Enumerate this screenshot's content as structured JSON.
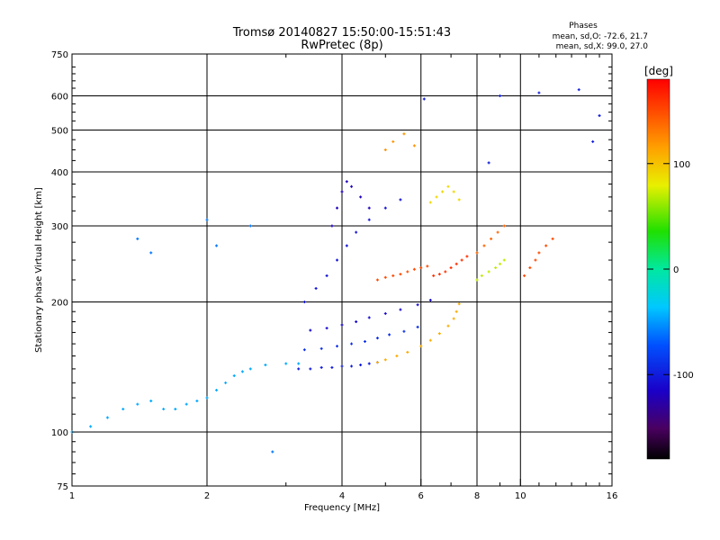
{
  "header": {
    "title_line1": "Tromsø 20140827 15:50:00-15:51:43",
    "title_line2": "RwPretec (8p)",
    "phases_heading": "Phases",
    "phases_o": "mean, sd,O: -72.6, 21.7",
    "phases_x": "mean, sd,X:  99.0, 27.0"
  },
  "colorbar": {
    "unit_label": "[deg]",
    "ticks": [
      {
        "value": 100,
        "label": "100"
      },
      {
        "value": 0,
        "label": "0"
      },
      {
        "value": -100,
        "label": "-100"
      }
    ],
    "range": [
      -180,
      180
    ]
  },
  "chart_data": {
    "type": "scatter",
    "xlabel": "Frequency [MHz]",
    "ylabel": "Stationary phase Virtual Height [km]",
    "x_scale": "log",
    "y_scale": "log",
    "xlim": [
      1,
      16
    ],
    "ylim": [
      75,
      750
    ],
    "grid": true,
    "x_ticks": [
      {
        "value": 1,
        "label": "1"
      },
      {
        "value": 2,
        "label": "2"
      },
      {
        "value": 4,
        "label": "4"
      },
      {
        "value": 6,
        "label": "6"
      },
      {
        "value": 8,
        "label": "8"
      },
      {
        "value": 10,
        "label": "10"
      },
      {
        "value": 16,
        "label": "16"
      }
    ],
    "y_ticks": [
      {
        "value": 75,
        "label": "75"
      },
      {
        "value": 100,
        "label": "100"
      },
      {
        "value": 200,
        "label": "200"
      },
      {
        "value": 300,
        "label": "300"
      },
      {
        "value": 400,
        "label": "400"
      },
      {
        "value": 500,
        "label": "500"
      },
      {
        "value": 600,
        "label": "600"
      },
      {
        "value": 750,
        "label": "750"
      }
    ],
    "grid_x": [
      2,
      4,
      6,
      8,
      10
    ],
    "grid_y": [
      100,
      200,
      300,
      400,
      500,
      600
    ],
    "color_scale": "rainbow (black to red) over phase -180 to 180 deg",
    "point_groups": [
      {
        "f": [
          1.0,
          1.1,
          1.2,
          1.3,
          1.4,
          1.5,
          1.6,
          1.7,
          1.8,
          1.9,
          2.0,
          2.1,
          2.2,
          2.3,
          2.4,
          2.5,
          2.7,
          3.0,
          3.2
        ],
        "h": [
          100,
          103,
          108,
          113,
          116,
          118,
          113,
          113,
          116,
          118,
          120,
          125,
          130,
          135,
          138,
          140,
          143,
          144,
          144
        ],
        "phase": -45
      },
      {
        "f": [
          3.2,
          3.4,
          3.6,
          3.8,
          4.0,
          4.2,
          4.4,
          4.6,
          4.8
        ],
        "h": [
          140,
          140,
          141,
          141,
          142,
          142,
          143,
          144,
          145
        ],
        "phase": -100
      },
      {
        "f": [
          4.8,
          5.0,
          5.3,
          5.6,
          6.0,
          6.3,
          6.6,
          6.9,
          7.1,
          7.2,
          7.3
        ],
        "h": [
          145,
          147,
          150,
          153,
          158,
          163,
          169,
          176,
          183,
          190,
          198
        ],
        "phase": 110
      },
      {
        "f": [
          3.3,
          3.6,
          3.9,
          4.2,
          4.5,
          4.8,
          5.1,
          5.5,
          5.9
        ],
        "h": [
          155,
          156,
          158,
          160,
          162,
          165,
          168,
          171,
          175
        ],
        "phase": -90
      },
      {
        "f": [
          3.4,
          3.7,
          4.0,
          4.3,
          4.6,
          5.0,
          5.4,
          5.9,
          6.3
        ],
        "h": [
          172,
          174,
          177,
          180,
          184,
          188,
          192,
          197,
          202
        ],
        "phase": -110
      },
      {
        "f": [
          3.3,
          3.5,
          3.7,
          3.9,
          4.1,
          4.3,
          4.6,
          5.0,
          5.4
        ],
        "h": [
          200,
          215,
          230,
          250,
          270,
          290,
          310,
          330,
          345
        ],
        "phase": -105
      },
      {
        "f": [
          3.8,
          3.9,
          4.0,
          4.1,
          4.2,
          4.4,
          4.6
        ],
        "h": [
          300,
          330,
          360,
          380,
          370,
          350,
          330
        ],
        "phase": -120
      },
      {
        "f": [
          4.8,
          5.0,
          5.2,
          5.4,
          5.6,
          5.8,
          6.0,
          6.2
        ],
        "h": [
          225,
          228,
          230,
          232,
          235,
          238,
          240,
          242
        ],
        "phase": 150
      },
      {
        "f": [
          6.4,
          6.6,
          6.8,
          7.0,
          7.2,
          7.4,
          7.6
        ],
        "h": [
          230,
          232,
          235,
          240,
          245,
          250,
          255
        ],
        "phase": 160
      },
      {
        "f": [
          6.3,
          6.5,
          6.7,
          6.9,
          7.1,
          7.3
        ],
        "h": [
          340,
          350,
          360,
          370,
          360,
          345
        ],
        "phase": 90
      },
      {
        "f": [
          8.0,
          8.3,
          8.6,
          8.9,
          9.2
        ],
        "h": [
          260,
          270,
          280,
          290,
          300
        ],
        "phase": 140
      },
      {
        "f": [
          8.0,
          8.2,
          8.5,
          8.8,
          9.0,
          9.2
        ],
        "h": [
          225,
          230,
          235,
          240,
          245,
          250
        ],
        "phase": 70
      },
      {
        "f": [
          10.2,
          10.5,
          10.8,
          11.0,
          11.4,
          11.8
        ],
        "h": [
          230,
          240,
          250,
          260,
          270,
          280
        ],
        "phase": 150
      },
      {
        "f": [
          5.0,
          5.2,
          5.5,
          5.8
        ],
        "h": [
          450,
          470,
          490,
          460
        ],
        "phase": 120
      },
      {
        "f": [
          6.1,
          8.5,
          9.0,
          11.0,
          13.5,
          14.5,
          15.0
        ],
        "h": [
          590,
          420,
          600,
          610,
          620,
          470,
          540
        ],
        "phase": -100
      },
      {
        "f": [
          1.4,
          1.5,
          2.0,
          2.1,
          2.5,
          2.8
        ],
        "h": [
          280,
          260,
          310,
          270,
          300,
          90
        ],
        "phase": -60
      }
    ]
  }
}
